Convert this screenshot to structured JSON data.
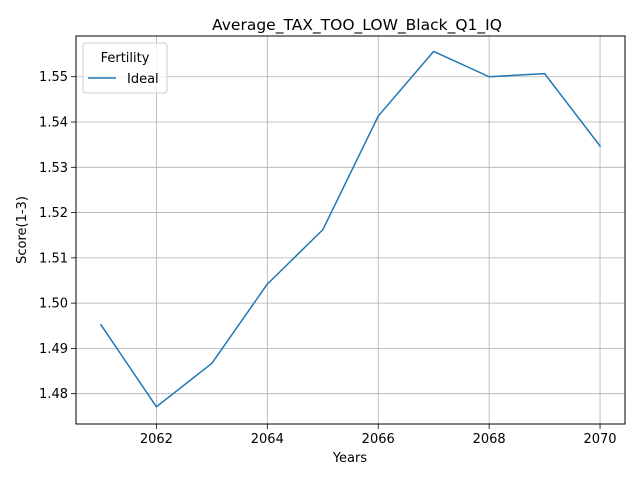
{
  "chart_data": {
    "type": "line",
    "title": "Average_TAX_TOO_LOW_Black_Q1_IQ",
    "xlabel": "Years",
    "ylabel": "Score(1-3)",
    "x": [
      2061,
      2062,
      2063,
      2064,
      2065,
      2066,
      2067,
      2068,
      2069,
      2070
    ],
    "series": [
      {
        "name": "Ideal",
        "color": "#1f77b4",
        "values": [
          1.4952,
          1.4771,
          1.4867,
          1.5042,
          1.5162,
          1.5413,
          1.5556,
          1.55,
          1.5507,
          1.5347
        ]
      }
    ],
    "xlim": [
      2060.55,
      2070.45
    ],
    "ylim": [
      1.4733,
      1.559
    ],
    "xticks": [
      2062,
      2064,
      2066,
      2068,
      2070
    ],
    "xtick_labels": [
      "2062",
      "2064",
      "2066",
      "2068",
      "2070"
    ],
    "yticks": [
      1.48,
      1.49,
      1.5,
      1.51,
      1.52,
      1.53,
      1.54,
      1.55
    ],
    "ytick_labels": [
      "1.48",
      "1.49",
      "1.50",
      "1.51",
      "1.52",
      "1.53",
      "1.54",
      "1.55"
    ],
    "grid": true,
    "legend": {
      "title": "Fertility",
      "placement": "top-left"
    }
  }
}
